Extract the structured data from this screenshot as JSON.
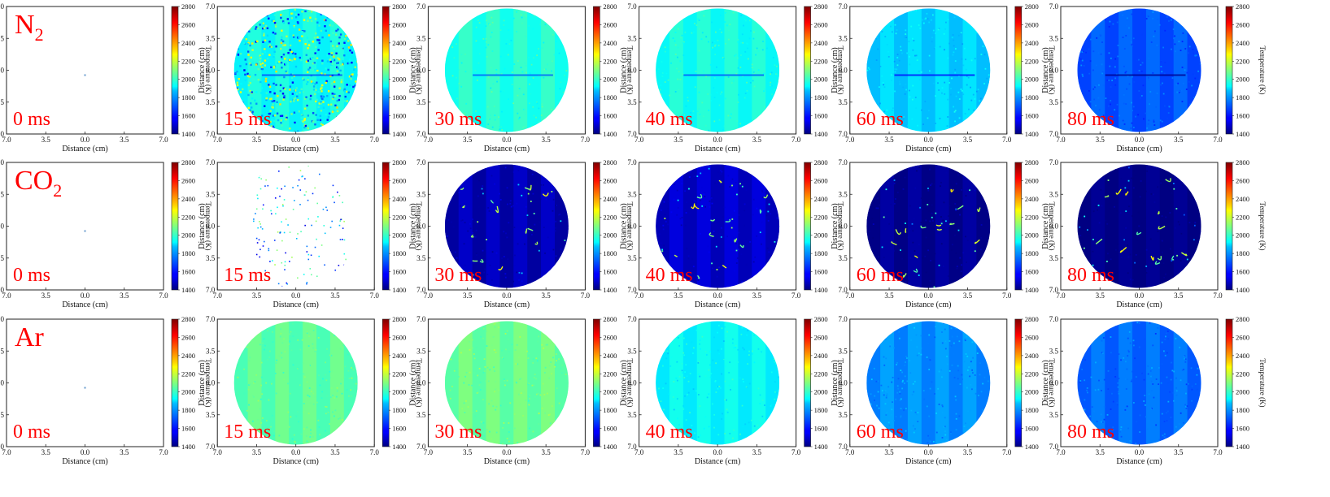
{
  "figure": {
    "colorbar": {
      "label": "Temperature (K)",
      "ticks": [
        "2800",
        "2600",
        "2400",
        "2200",
        "2000",
        "1800",
        "1600",
        "1400"
      ],
      "colormap": "jet",
      "range": [
        1400,
        2800
      ]
    },
    "axes": {
      "xlabel": "Distance (cm)",
      "ylabel": "Distance (cm)",
      "xticks": [
        "7.0",
        "3.5",
        "0.0",
        "3.5",
        "7.0"
      ],
      "yticks": [
        "7.0",
        "3.5",
        "0.0",
        "3.5",
        "7.0"
      ]
    },
    "label_color": "#ff0000"
  },
  "chart_data": {
    "type": "heatmap",
    "rows": [
      {
        "gas": "N2",
        "gas_main": "N",
        "gas_sub": "2",
        "panels": [
          {
            "time": "0 ms",
            "state": "empty",
            "dominant_temp_K": null
          },
          {
            "time": "15 ms",
            "state": "noisy",
            "dominant_temp_K": 1950
          },
          {
            "time": "30 ms",
            "state": "field",
            "dominant_temp_K": 1980
          },
          {
            "time": "40 ms",
            "state": "field",
            "dominant_temp_K": 1960
          },
          {
            "time": "60 ms",
            "state": "field",
            "dominant_temp_K": 1870
          },
          {
            "time": "80 ms",
            "state": "field",
            "dominant_temp_K": 1700
          }
        ]
      },
      {
        "gas": "CO2",
        "gas_main": "CO",
        "gas_sub": "2",
        "panels": [
          {
            "time": "0 ms",
            "state": "empty",
            "dominant_temp_K": null
          },
          {
            "time": "15 ms",
            "state": "sparse",
            "dominant_temp_K": null
          },
          {
            "time": "30 ms",
            "state": "dark",
            "dominant_temp_K": 1480
          },
          {
            "time": "40 ms",
            "state": "dark",
            "dominant_temp_K": 1510
          },
          {
            "time": "60 ms",
            "state": "dark",
            "dominant_temp_K": 1430
          },
          {
            "time": "80 ms",
            "state": "dark",
            "dominant_temp_K": 1410
          }
        ]
      },
      {
        "gas": "Ar",
        "gas_main": "Ar",
        "gas_sub": "",
        "panels": [
          {
            "time": "0 ms",
            "state": "empty",
            "dominant_temp_K": null
          },
          {
            "time": "15 ms",
            "state": "field",
            "dominant_temp_K": 2060
          },
          {
            "time": "30 ms",
            "state": "field",
            "dominant_temp_K": 2080
          },
          {
            "time": "40 ms",
            "state": "field",
            "dominant_temp_K": 1930
          },
          {
            "time": "60 ms",
            "state": "field",
            "dominant_temp_K": 1780
          },
          {
            "time": "80 ms",
            "state": "field",
            "dominant_temp_K": 1730
          }
        ]
      }
    ]
  }
}
